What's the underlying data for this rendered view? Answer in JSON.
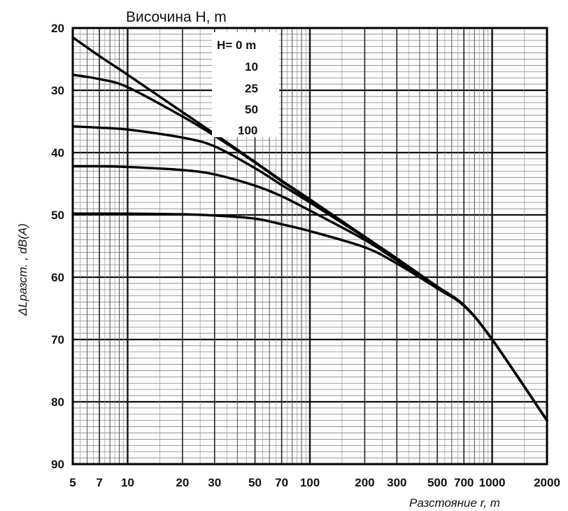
{
  "chart_data": {
    "type": "line",
    "title": "Височина  H,  m",
    "xlabel": "Разстояние r,  m",
    "ylabel": "ΔLразст. ,  dB(A)",
    "x_scale": "log",
    "xlim": [
      5,
      2000
    ],
    "ylim": [
      20,
      90
    ],
    "y_inverted": true,
    "grid": true,
    "legend_placement": "top-center",
    "x_ticks": [
      "5",
      "7",
      "10",
      "20",
      "30",
      "50",
      "70",
      "100",
      "200",
      "300",
      "500",
      "700",
      "1000",
      "2000"
    ],
    "y_ticks": [
      "20",
      "30",
      "40",
      "50",
      "60",
      "70",
      "80",
      "90"
    ],
    "series": [
      {
        "name": "H= 0 m",
        "x": [
          5,
          7,
          10,
          20,
          30,
          50,
          70,
          100,
          200,
          300,
          500,
          700,
          1000,
          2000
        ],
        "values": [
          21.5,
          24.5,
          27.5,
          33.5,
          37,
          41.5,
          44.5,
          47.5,
          53.5,
          57,
          61.5,
          64.5,
          70,
          83
        ]
      },
      {
        "name": "10",
        "x": [
          5,
          7,
          10,
          20,
          30,
          50,
          70,
          100,
          200,
          300,
          500,
          700,
          1000,
          2000
        ],
        "values": [
          27.5,
          28.2,
          29.5,
          34.2,
          37.3,
          41.6,
          44.6,
          47.6,
          53.5,
          57,
          61.5,
          64.5,
          70,
          83
        ]
      },
      {
        "name": "25",
        "x": [
          5,
          7,
          10,
          20,
          30,
          50,
          70,
          100,
          200,
          300,
          500,
          700,
          1000,
          2000
        ],
        "values": [
          35.8,
          36,
          36.3,
          37.6,
          39,
          42.5,
          45.2,
          48,
          53.6,
          57.1,
          61.5,
          64.5,
          70,
          83
        ]
      },
      {
        "name": "50",
        "x": [
          5,
          7,
          10,
          20,
          30,
          50,
          70,
          100,
          200,
          300,
          500,
          700,
          1000,
          2000
        ],
        "values": [
          42.2,
          42.2,
          42.3,
          42.8,
          43.5,
          45.3,
          47,
          49.3,
          54,
          57.3,
          61.6,
          64.5,
          70,
          83
        ]
      },
      {
        "name": "100",
        "x": [
          5,
          7,
          10,
          20,
          30,
          50,
          70,
          100,
          200,
          300,
          500,
          700,
          1000,
          2000
        ],
        "values": [
          49.8,
          49.8,
          49.8,
          49.9,
          50.1,
          50.6,
          51.5,
          52.6,
          55.2,
          57.8,
          61.8,
          64.6,
          70,
          83
        ]
      }
    ]
  }
}
